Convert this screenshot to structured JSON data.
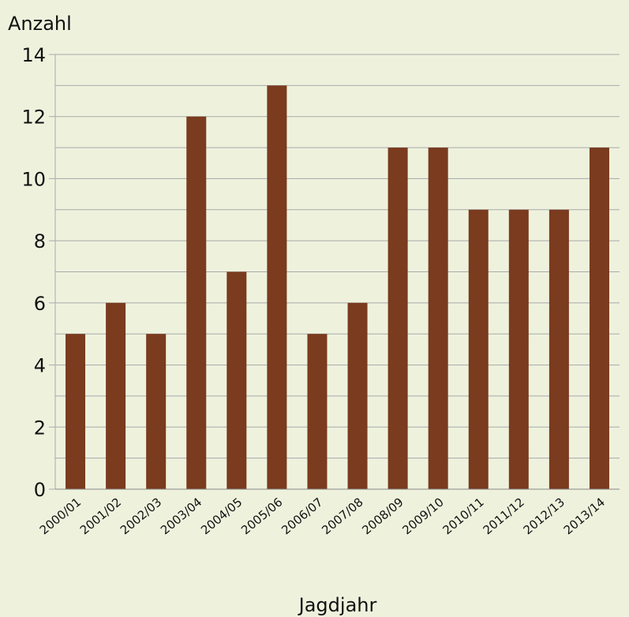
{
  "chart_data": {
    "type": "bar",
    "y_label": "Anzahl",
    "x_label": "Jagdjahr",
    "categories": [
      "2000/01",
      "2001/02",
      "2002/03",
      "2003/04",
      "2004/05",
      "2005/06",
      "2006/07",
      "2007/08",
      "2008/09",
      "2009/10",
      "2010/11",
      "2011/12",
      "2012/13",
      "2013/14"
    ],
    "values": [
      5,
      6,
      5,
      12,
      7,
      13,
      5,
      6,
      11,
      11,
      9,
      9,
      9,
      11
    ],
    "color": "#7a3b1e",
    "ylim": [
      0,
      14
    ],
    "yticks": [
      0,
      2,
      4,
      6,
      8,
      10,
      12,
      14
    ],
    "minor_yticks": [
      1,
      3,
      5,
      7,
      9,
      11,
      13
    ],
    "grid": true
  }
}
